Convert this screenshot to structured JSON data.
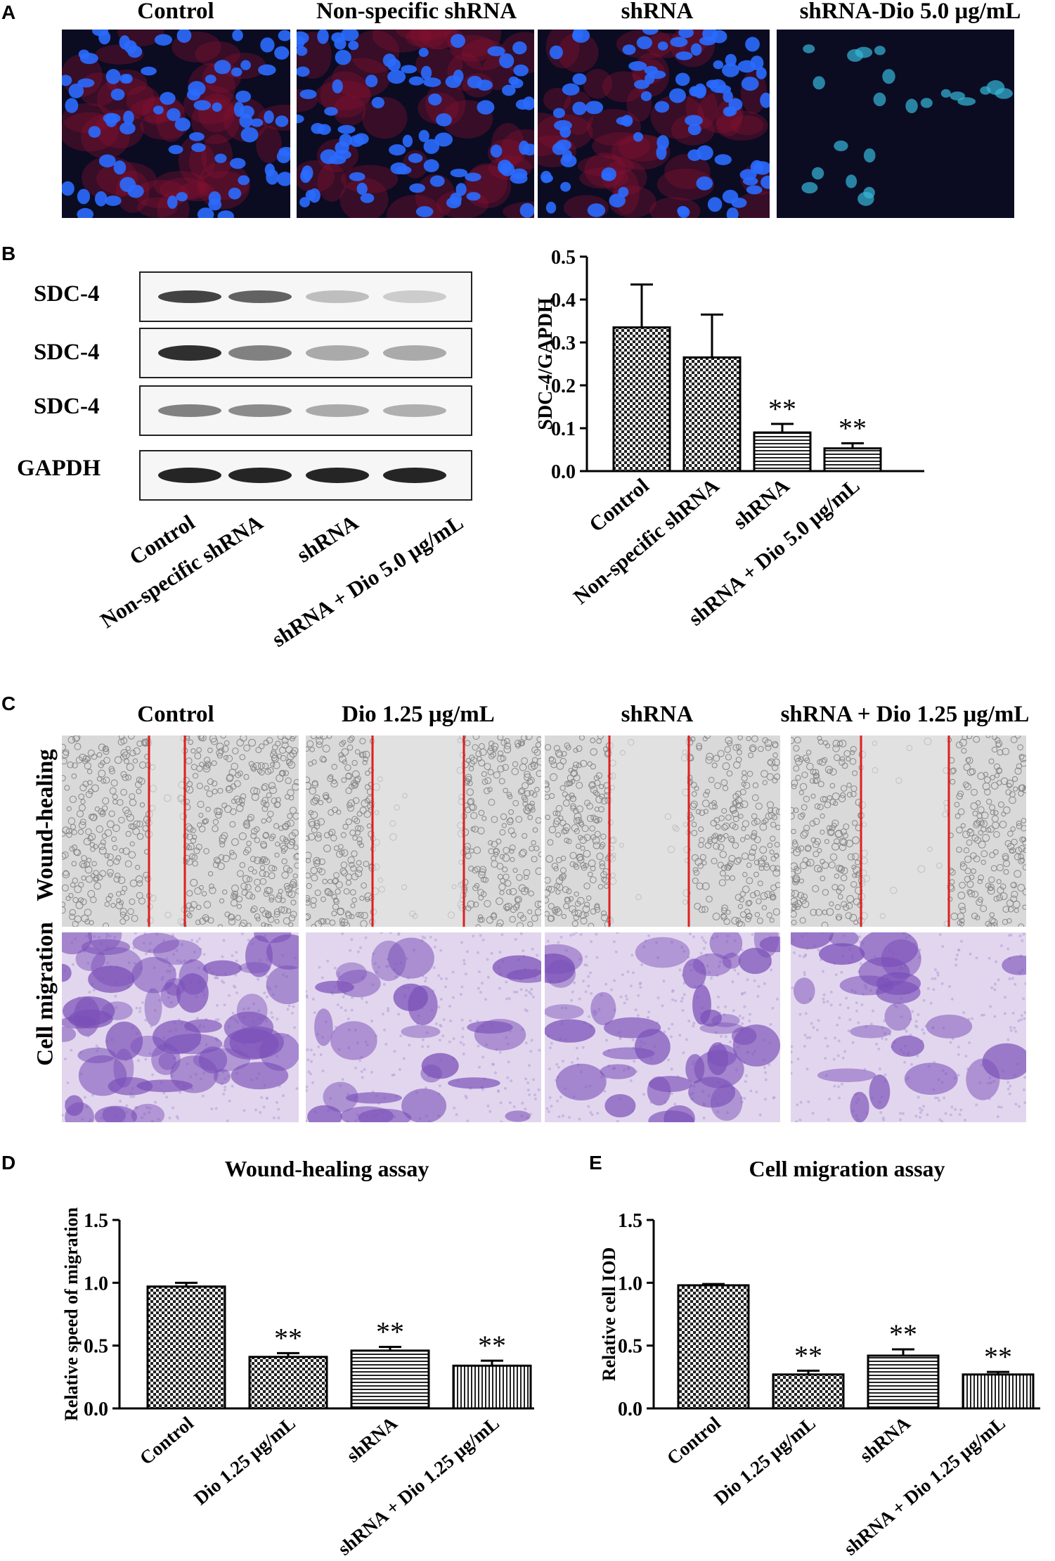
{
  "panelA": {
    "letter": "A",
    "labels": [
      "Control",
      "Non-specific shRNA",
      "shRNA",
      "shRNA-Dio 5.0 μg/mL"
    ]
  },
  "panelB": {
    "letter": "B",
    "blot_rows": [
      "SDC-4",
      "SDC-4",
      "SDC-4",
      "GAPDH"
    ],
    "lane_labels": [
      "Control",
      "Non-specific shRNA",
      "shRNA",
      "shRNA + Dio 5.0 μg/mL"
    ]
  },
  "panelC": {
    "letter": "C",
    "labels": [
      "Control",
      "Dio 1.25 μg/mL",
      "shRNA",
      "shRNA + Dio 1.25 μg/mL"
    ],
    "row_labels": [
      "Wound-healing",
      "Cell migration"
    ]
  },
  "panelD": {
    "letter": "D"
  },
  "panelE": {
    "letter": "E"
  },
  "colors": {
    "wound_line": "#e02020",
    "nucleus": "#1e5cff",
    "crystal_violet": "#7a4fb8"
  },
  "chart_data": [
    {
      "id": "B",
      "type": "bar",
      "title": "",
      "ylabel": "SDC-4/GAPDH",
      "categories": [
        "Control",
        "Non-specific shRNA",
        "shRNA",
        "shRNA + Dio 5.0 μg/mL"
      ],
      "values": [
        0.335,
        0.265,
        0.09,
        0.053
      ],
      "errors": [
        0.1,
        0.1,
        0.02,
        0.012
      ],
      "significance": [
        "",
        "",
        "**",
        "**"
      ],
      "patterns": [
        "checker",
        "checker",
        "hlines",
        "hlines"
      ],
      "ylim": [
        0.0,
        0.5
      ],
      "yticks": [
        "0.0",
        "0.1",
        "0.2",
        "0.3",
        "0.4",
        "0.5"
      ]
    },
    {
      "id": "D",
      "type": "bar",
      "title": "Wound-healing assay",
      "ylabel": "Relative speed of migration",
      "categories": [
        "Control",
        "Dio 1.25 μg/mL",
        "shRNA",
        "shRNA + Dio 1.25 μg/mL"
      ],
      "values": [
        0.97,
        0.41,
        0.46,
        0.34
      ],
      "errors": [
        0.03,
        0.03,
        0.03,
        0.04
      ],
      "significance": [
        "",
        "**",
        "**",
        "**"
      ],
      "patterns": [
        "checker",
        "checker",
        "hlines",
        "vlines"
      ],
      "ylim": [
        0.0,
        1.5
      ],
      "yticks": [
        "0.0",
        "0.5",
        "1.0",
        "1.5"
      ]
    },
    {
      "id": "E",
      "type": "bar",
      "title": "Cell migration assay",
      "ylabel": "Relative cell IOD",
      "categories": [
        "Control",
        "Dio 1.25 μg/mL",
        "shRNA",
        "shRNA + Dio 1.25 μg/mL"
      ],
      "values": [
        0.98,
        0.27,
        0.42,
        0.27
      ],
      "errors": [
        0.01,
        0.03,
        0.05,
        0.02
      ],
      "significance": [
        "",
        "**",
        "**",
        "**"
      ],
      "patterns": [
        "checker",
        "checker",
        "hlines",
        "vlines"
      ],
      "ylim": [
        0.0,
        1.5
      ],
      "yticks": [
        "0.0",
        "0.5",
        "1.0",
        "1.5"
      ]
    }
  ]
}
